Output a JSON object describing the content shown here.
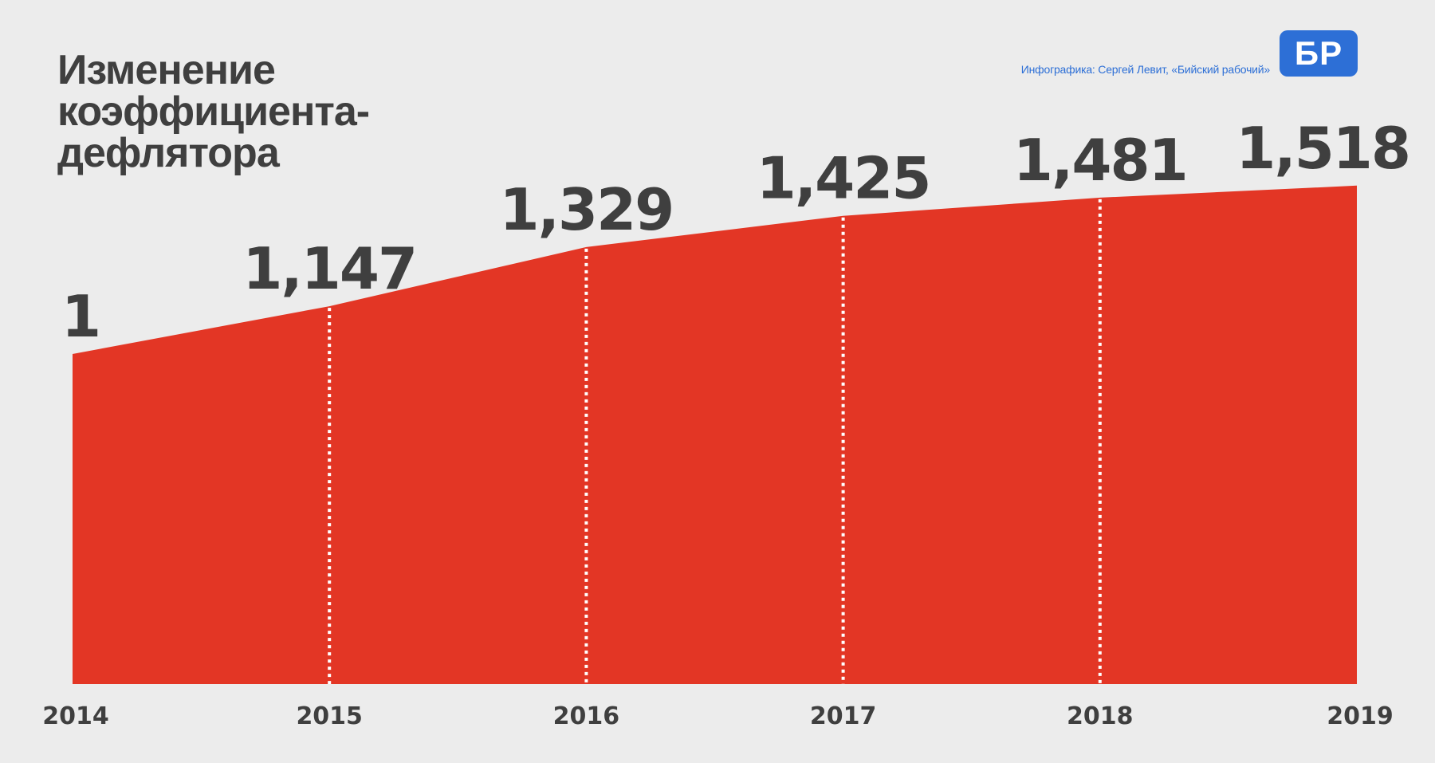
{
  "header": {
    "title_lines": [
      "Изменение",
      "коэффициента-",
      "дефлятора"
    ],
    "credit": "Инфографика: Сергей Левит, «Бийский рабочий»",
    "logo_text": "БР"
  },
  "colors": {
    "background": "#ececec",
    "area_fill": "#e33625",
    "text": "#3f3f3f",
    "brand_blue": "#2d6fd6",
    "divider": "#ffffff"
  },
  "chart_data": {
    "type": "area",
    "title": "Изменение коэффициента-дефлятора",
    "categories": [
      "2014",
      "2015",
      "2016",
      "2017",
      "2018",
      "2019"
    ],
    "values": [
      1,
      1.147,
      1.329,
      1.425,
      1.481,
      1.518
    ],
    "data_labels": [
      "1",
      "1,147",
      "1,329",
      "1,425",
      "1,481",
      "1,518"
    ],
    "ylim": [
      0,
      1.518
    ],
    "grid": false,
    "dividers": "dotted white vertical lines at each year after the first"
  }
}
